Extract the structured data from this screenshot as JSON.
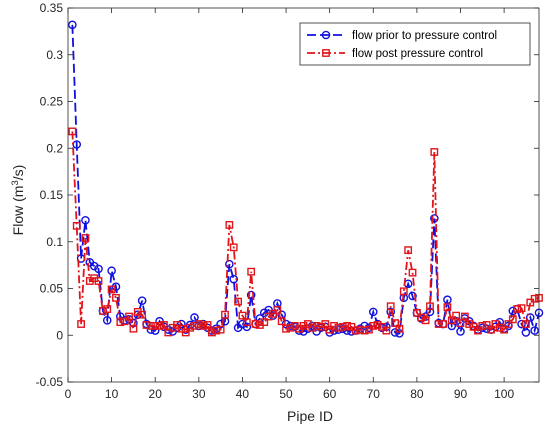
{
  "chart_data": {
    "type": "line",
    "xlabel": "Pipe ID",
    "ylabel_main": "Flow (m",
    "ylabel_sup": "3",
    "ylabel_tail": "/s)",
    "xlim": [
      0,
      108
    ],
    "ylim": [
      -0.05,
      0.35
    ],
    "xticks": [
      0,
      10,
      20,
      30,
      40,
      50,
      60,
      70,
      80,
      90,
      100
    ],
    "yticks": [
      -0.05,
      0,
      0.05,
      0.1,
      0.15,
      0.2,
      0.25,
      0.3,
      0.35
    ],
    "ytick_labels": [
      "-0.05",
      "0",
      "0.05",
      "0.1",
      "0.15",
      "0.2",
      "0.25",
      "0.3",
      "0.35"
    ],
    "legend_position": "top-right",
    "series": [
      {
        "name": "flow prior to pressure control",
        "color": "#1010e0",
        "linestyle": "dashed",
        "marker": "circle",
        "values": [
          0.332,
          0.204,
          0.082,
          0.123,
          0.078,
          0.074,
          0.071,
          0.026,
          0.016,
          0.069,
          0.052,
          0.02,
          0.016,
          0.017,
          0.013,
          0.022,
          0.037,
          0.012,
          0.006,
          0.005,
          0.015,
          0.009,
          0.006,
          0.004,
          0.008,
          0.012,
          0.006,
          0.011,
          0.019,
          0.01,
          0.012,
          0.008,
          0.005,
          0.007,
          0.012,
          0.015,
          0.076,
          0.06,
          0.008,
          0.012,
          0.009,
          0.043,
          0.012,
          0.018,
          0.024,
          0.027,
          0.021,
          0.034,
          0.022,
          0.012,
          0.01,
          0.009,
          0.005,
          0.004,
          0.007,
          0.01,
          0.004,
          0.008,
          0.009,
          0.003,
          0.005,
          0.006,
          0.007,
          0.005,
          0.004,
          0.005,
          0.007,
          0.01,
          0.008,
          0.025,
          0.012,
          0.008,
          0.009,
          0.025,
          0.003,
          0.002,
          0.04,
          0.055,
          0.042,
          0.024,
          0.018,
          0.02,
          0.025,
          0.125,
          0.013,
          0.012,
          0.038,
          0.01,
          0.015,
          0.004,
          0.018,
          0.015,
          0.01,
          0.006,
          0.008,
          0.007,
          0.006,
          0.009,
          0.014,
          0.007,
          0.01,
          0.026,
          0.028,
          0.012,
          0.003,
          0.019,
          0.005,
          0.024
        ]
      },
      {
        "name": "flow post pressure control",
        "color": "#e0151b",
        "linestyle": "dashdot",
        "marker": "square",
        "values": [
          0.218,
          0.117,
          0.012,
          0.104,
          0.058,
          0.061,
          0.058,
          0.026,
          0.028,
          0.049,
          0.04,
          0.014,
          0.015,
          0.02,
          0.007,
          0.025,
          0.022,
          0.011,
          0.01,
          0.01,
          0.01,
          0.011,
          0.003,
          0.008,
          0.011,
          0.007,
          0.003,
          0.008,
          0.01,
          0.012,
          0.01,
          0.011,
          0.003,
          0.005,
          0.006,
          0.022,
          0.118,
          0.094,
          0.036,
          0.021,
          0.014,
          0.068,
          0.012,
          0.011,
          0.014,
          0.02,
          0.023,
          0.027,
          0.015,
          0.007,
          0.008,
          0.01,
          0.007,
          0.01,
          0.012,
          0.008,
          0.01,
          0.009,
          0.012,
          0.006,
          0.01,
          0.008,
          0.009,
          0.01,
          0.009,
          0.005,
          0.006,
          0.005,
          0.006,
          0.01,
          0.011,
          0.009,
          0.005,
          0.031,
          0.013,
          0.007,
          0.047,
          0.091,
          0.067,
          0.024,
          0.019,
          0.016,
          0.031,
          0.196,
          0.012,
          0.012,
          0.03,
          0.016,
          0.021,
          0.013,
          0.02,
          0.012,
          0.009,
          0.005,
          0.01,
          0.011,
          0.006,
          0.012,
          0.008,
          0.006,
          0.012,
          0.017,
          0.028,
          0.029,
          0.012,
          0.035,
          0.039,
          0.04
        ]
      }
    ]
  }
}
